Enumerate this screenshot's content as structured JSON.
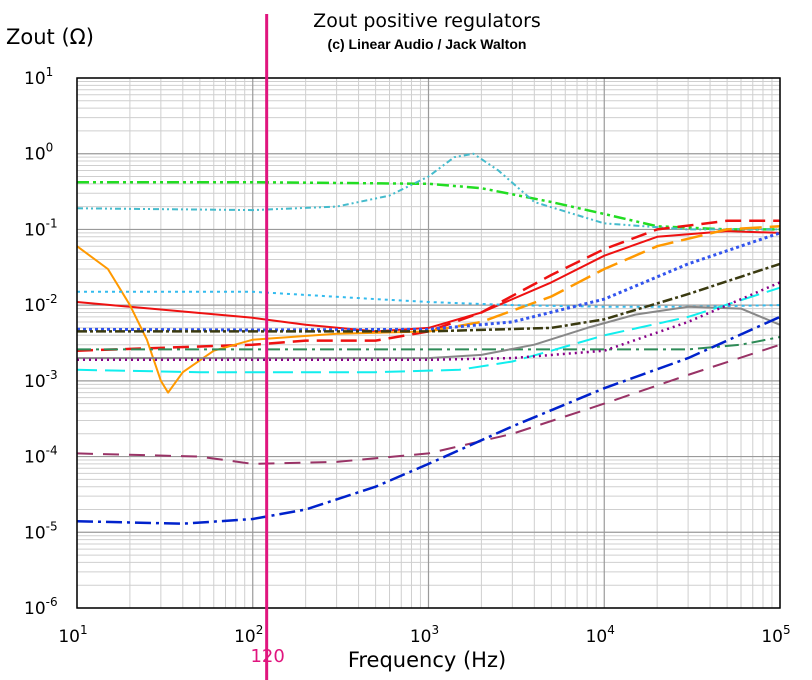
{
  "chart_data": {
    "type": "line",
    "title": "Zout positive regulators",
    "subtitle": "(c) Linear Audio / Jack Walton",
    "ylabel": "Zout (Ω)",
    "xlabel": "Frequency (Hz)",
    "x_scale": "log",
    "y_scale": "log",
    "xlim": [
      10,
      100000
    ],
    "ylim": [
      1e-06,
      10
    ],
    "grid": true,
    "x_ticks": [
      {
        "base": "10",
        "exp": "1",
        "value": 10
      },
      {
        "base": "10",
        "exp": "2",
        "value": 100
      },
      {
        "base": "10",
        "exp": "3",
        "value": 1000
      },
      {
        "base": "10",
        "exp": "4",
        "value": 10000
      },
      {
        "base": "10",
        "exp": "5",
        "value": 100000
      }
    ],
    "y_ticks": [
      {
        "base": "10",
        "exp": "1",
        "value": 10
      },
      {
        "base": "10",
        "exp": "0",
        "value": 1
      },
      {
        "base": "10",
        "exp": "-1",
        "value": 0.1
      },
      {
        "base": "10",
        "exp": "-2",
        "value": 0.01
      },
      {
        "base": "10",
        "exp": "-3",
        "value": 0.001
      },
      {
        "base": "10",
        "exp": "-4",
        "value": 0.0001
      },
      {
        "base": "10",
        "exp": "-5",
        "value": 1e-05
      },
      {
        "base": "10",
        "exp": "-6",
        "value": 1e-06
      }
    ],
    "marker": {
      "x": 120,
      "label": "120",
      "color": "#e0157e"
    },
    "series": [
      {
        "color": "#22dd22",
        "dash": "12,4,3,4,3,4",
        "width": 2.5,
        "points": [
          [
            10,
            0.42
          ],
          [
            100,
            0.42
          ],
          [
            1000,
            0.4
          ],
          [
            2000,
            0.35
          ],
          [
            5000,
            0.23
          ],
          [
            10000,
            0.16
          ],
          [
            20000,
            0.11
          ],
          [
            50000,
            0.1
          ],
          [
            100000,
            0.1
          ]
        ]
      },
      {
        "color": "#44bbcc",
        "dash": "6,3,2,3,2,3",
        "width": 2,
        "points": [
          [
            10,
            0.19
          ],
          [
            100,
            0.18
          ],
          [
            300,
            0.2
          ],
          [
            600,
            0.28
          ],
          [
            1000,
            0.5
          ],
          [
            1400,
            0.9
          ],
          [
            1800,
            1.0
          ],
          [
            2500,
            0.6
          ],
          [
            4000,
            0.23
          ],
          [
            10000,
            0.12
          ],
          [
            30000,
            0.1
          ],
          [
            100000,
            0.1
          ]
        ]
      },
      {
        "color": "#ee1111",
        "dash": "16,8",
        "width": 2.5,
        "points": [
          [
            10,
            0.0025
          ],
          [
            100,
            0.003
          ],
          [
            200,
            0.0034
          ],
          [
            500,
            0.0034
          ],
          [
            1000,
            0.0045
          ],
          [
            2000,
            0.008
          ],
          [
            5000,
            0.025
          ],
          [
            10000,
            0.055
          ],
          [
            20000,
            0.1
          ],
          [
            50000,
            0.13
          ],
          [
            100000,
            0.13
          ]
        ]
      },
      {
        "color": "#ee1111",
        "dash": "",
        "width": 2,
        "points": [
          [
            10,
            0.011
          ],
          [
            100,
            0.0068
          ],
          [
            200,
            0.0055
          ],
          [
            500,
            0.0045
          ],
          [
            1000,
            0.005
          ],
          [
            2000,
            0.008
          ],
          [
            5000,
            0.02
          ],
          [
            10000,
            0.045
          ],
          [
            20000,
            0.08
          ],
          [
            50000,
            0.095
          ],
          [
            100000,
            0.09
          ]
        ]
      },
      {
        "color": "#ff9900",
        "dash": "",
        "width": 2,
        "points": [
          [
            10,
            0.06
          ],
          [
            15,
            0.03
          ],
          [
            20,
            0.01
          ],
          [
            25,
            0.0035
          ],
          [
            30,
            0.001
          ],
          [
            33,
            0.0007
          ],
          [
            40,
            0.0013
          ],
          [
            60,
            0.0025
          ],
          [
            100,
            0.0035
          ],
          [
            300,
            0.0042
          ],
          [
            1000,
            0.0045
          ]
        ]
      },
      {
        "color": "#ff9900",
        "dash": "22,8",
        "width": 2.5,
        "points": [
          [
            1000,
            0.0045
          ],
          [
            2000,
            0.006
          ],
          [
            5000,
            0.013
          ],
          [
            10000,
            0.03
          ],
          [
            20000,
            0.06
          ],
          [
            50000,
            0.1
          ],
          [
            100000,
            0.11
          ]
        ]
      },
      {
        "color": "#33bbee",
        "dash": "3,4",
        "width": 2,
        "points": [
          [
            10,
            0.015
          ],
          [
            100,
            0.015
          ],
          [
            500,
            0.012
          ],
          [
            1000,
            0.011
          ],
          [
            3000,
            0.01
          ],
          [
            10000,
            0.0095
          ],
          [
            30000,
            0.0095
          ],
          [
            100000,
            0.01
          ]
        ]
      },
      {
        "color": "#3355ee",
        "dash": "3,3",
        "width": 3,
        "points": [
          [
            10,
            0.0048
          ],
          [
            100,
            0.0047
          ],
          [
            1000,
            0.0048
          ],
          [
            3000,
            0.006
          ],
          [
            10000,
            0.012
          ],
          [
            30000,
            0.035
          ],
          [
            100000,
            0.09
          ]
        ]
      },
      {
        "color": "#3a3a10",
        "dash": "10,3,3,3",
        "width": 2.5,
        "points": [
          [
            10,
            0.0045
          ],
          [
            1000,
            0.0045
          ],
          [
            5000,
            0.005
          ],
          [
            10000,
            0.0065
          ],
          [
            30000,
            0.014
          ],
          [
            100000,
            0.035
          ]
        ]
      },
      {
        "color": "#2e8b57",
        "dash": "14,5,3,5",
        "width": 2,
        "points": [
          [
            10,
            0.0026
          ],
          [
            100,
            0.0026
          ],
          [
            1000,
            0.0026
          ],
          [
            10000,
            0.0026
          ],
          [
            30000,
            0.0026
          ],
          [
            60000,
            0.003
          ],
          [
            100000,
            0.0038
          ]
        ]
      },
      {
        "color": "#888888",
        "dash": "",
        "width": 2,
        "points": [
          [
            10,
            0.002
          ],
          [
            1000,
            0.002
          ],
          [
            2000,
            0.0022
          ],
          [
            4000,
            0.003
          ],
          [
            8000,
            0.005
          ],
          [
            15000,
            0.0075
          ],
          [
            30000,
            0.0095
          ],
          [
            60000,
            0.009
          ],
          [
            100000,
            0.0055
          ]
        ]
      },
      {
        "color": "#11eeee",
        "dash": "20,8",
        "width": 2,
        "points": [
          [
            10,
            0.0014
          ],
          [
            50,
            0.0013
          ],
          [
            100,
            0.0013
          ],
          [
            500,
            0.0013
          ],
          [
            1500,
            0.0014
          ],
          [
            3000,
            0.0018
          ],
          [
            5000,
            0.0025
          ],
          [
            10000,
            0.004
          ],
          [
            30000,
            0.007
          ],
          [
            100000,
            0.017
          ]
        ]
      },
      {
        "color": "#880088",
        "dash": "2,4",
        "width": 2.5,
        "points": [
          [
            10,
            0.0019
          ],
          [
            100,
            0.0019
          ],
          [
            1000,
            0.0019
          ],
          [
            3000,
            0.002
          ],
          [
            10000,
            0.0025
          ],
          [
            30000,
            0.006
          ],
          [
            100000,
            0.02
          ]
        ]
      },
      {
        "color": "#993366",
        "dash": "16,10",
        "width": 2,
        "points": [
          [
            10,
            0.00011
          ],
          [
            50,
            0.0001
          ],
          [
            100,
            8e-05
          ],
          [
            300,
            8.5e-05
          ],
          [
            1000,
            0.00011
          ],
          [
            3000,
            0.0002
          ],
          [
            10000,
            0.0005
          ],
          [
            30000,
            0.0012
          ],
          [
            100000,
            0.003
          ]
        ]
      },
      {
        "color": "#0022cc",
        "dash": "16,5,3,5",
        "width": 2.5,
        "points": [
          [
            10,
            1.4e-05
          ],
          [
            40,
            1.3e-05
          ],
          [
            100,
            1.5e-05
          ],
          [
            200,
            2e-05
          ],
          [
            500,
            4e-05
          ],
          [
            1000,
            8e-05
          ],
          [
            3000,
            0.00025
          ],
          [
            10000,
            0.0008
          ],
          [
            30000,
            0.002
          ],
          [
            100000,
            0.007
          ]
        ]
      }
    ]
  }
}
